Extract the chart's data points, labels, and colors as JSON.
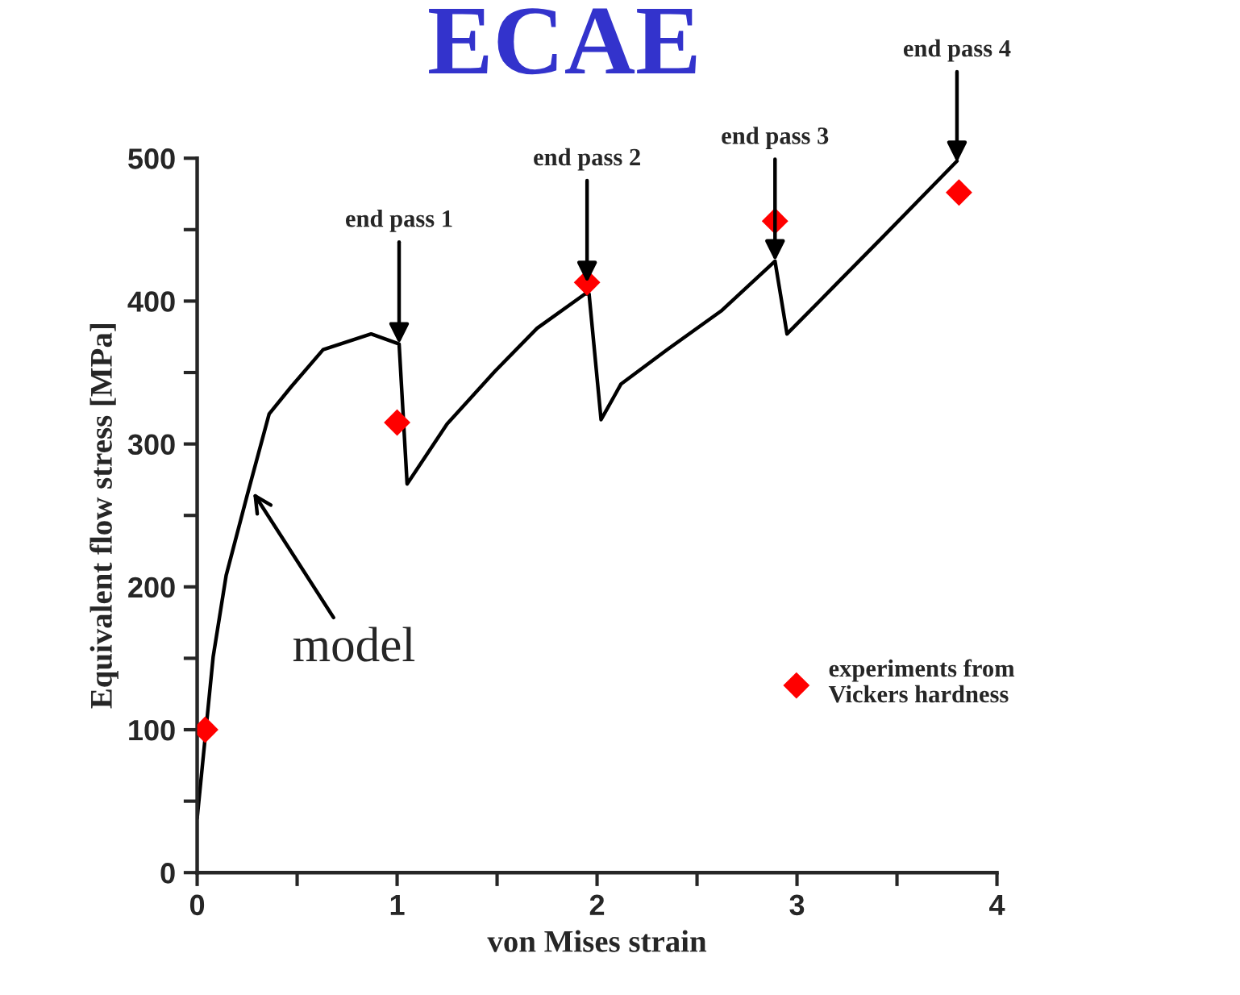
{
  "chart_data": {
    "type": "line",
    "title": "ECAE",
    "xlabel": "von Mises strain",
    "ylabel": "Equivalent flow stress [MPa]",
    "xlim": [
      0,
      4
    ],
    "ylim": [
      0,
      500
    ],
    "xticks": [
      0,
      {
        "value": 0.5,
        "label": null
      },
      1,
      {
        "value": 1.5,
        "label": null
      },
      2,
      {
        "value": 2.5,
        "label": null
      },
      3,
      {
        "value": 3.5,
        "label": null
      },
      4
    ],
    "yticks": [
      0,
      {
        "value": 50,
        "label": null
      },
      100,
      {
        "value": 150,
        "label": null
      },
      200,
      {
        "value": 250,
        "label": null
      },
      300,
      {
        "value": 350,
        "label": null
      },
      400,
      {
        "value": 450,
        "label": null
      },
      500
    ],
    "grid": false,
    "legend": "bottom right",
    "series": [
      {
        "color": "#000000",
        "marker": "none",
        "x": [
          0,
          0.08,
          0.145,
          0.25,
          0.36,
          0.47,
          0.63,
          0.87,
          1.01,
          1.05,
          1.25,
          1.49,
          1.7,
          1.94,
          1.96,
          2.02,
          2.12,
          2.35,
          2.62,
          2.89,
          2.95,
          3.19,
          3.43,
          3.8
        ],
        "values": [
          38,
          151,
          208,
          264,
          321,
          340,
          366,
          377,
          370,
          272,
          314,
          351,
          381,
          405,
          405,
          317,
          342,
          366,
          393,
          428,
          377,
          411,
          445,
          498
        ]
      },
      {
        "type": "scatter",
        "name": "experiments from\nVickers hardness",
        "color": "#ff0000",
        "marker": "diamond",
        "x": [
          0.04,
          1.0,
          1.95,
          2.89,
          3.81
        ],
        "values": [
          100,
          315,
          413,
          456,
          476
        ]
      }
    ],
    "annotations": [
      {
        "text": "end pass 1",
        "x": 1.01,
        "y": 370
      },
      {
        "text": "end pass 2",
        "x": 1.95,
        "y": 413
      },
      {
        "text": "end pass 3",
        "x": 2.89,
        "y": 428
      },
      {
        "text": "end pass 4",
        "x": 3.8,
        "y": 497
      },
      {
        "text": "model",
        "x": 0.28,
        "y": 266
      }
    ]
  }
}
